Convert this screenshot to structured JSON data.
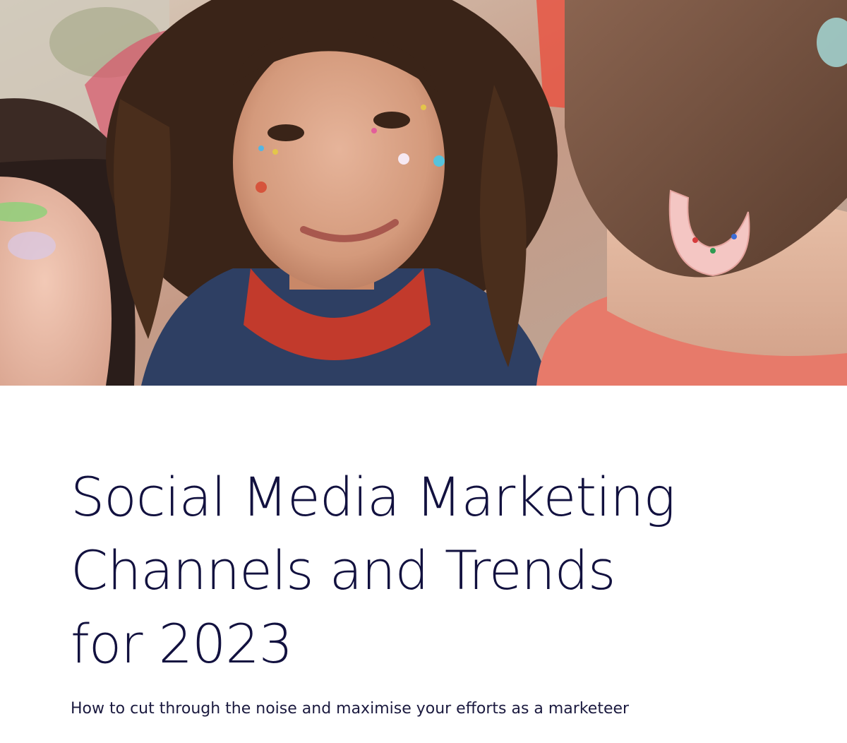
{
  "hero": {
    "image_alt": "Three friends with glitter face makeup, the woman in the centre has curly hair, freckles and a red bandana"
  },
  "document": {
    "title_lines": [
      "Social Media Marketing",
      "Channels and Trends",
      "for 2023"
    ],
    "subtitle": "How to cut through the noise and maximise your efforts as a marketeer"
  },
  "colors": {
    "title": "#12113f",
    "subtitle": "#1b1a3f",
    "background": "#ffffff"
  }
}
